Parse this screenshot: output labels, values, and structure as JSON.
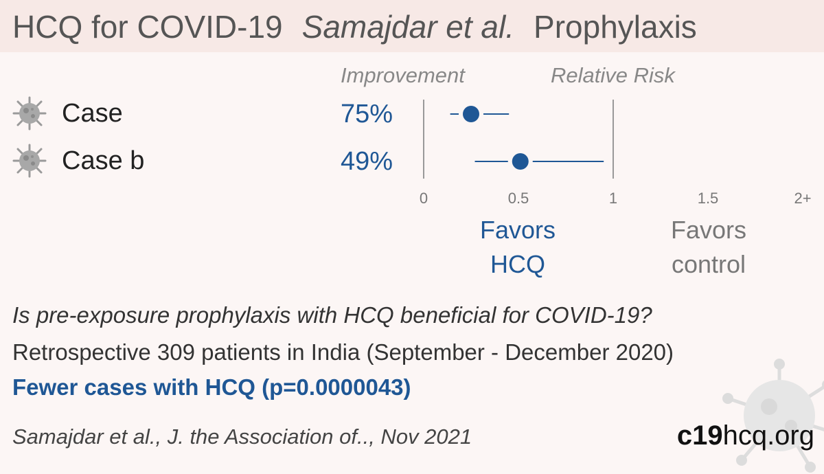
{
  "header": {
    "title": "HCQ for COVID-19",
    "study": "Samajdar et al.",
    "kind": "Prophylaxis"
  },
  "columns": {
    "improvement": "Improvement",
    "relative_risk": "Relative Risk"
  },
  "chart_data": {
    "type": "forest",
    "x_axis": {
      "range": [
        0,
        2
      ],
      "ticks": [
        0,
        0.5,
        1,
        1.5,
        2
      ],
      "tick_labels": [
        "0",
        "0.5",
        "1",
        "1.5",
        "2+"
      ],
      "reference_lines": [
        0,
        1
      ]
    },
    "rows": [
      {
        "label": "Case",
        "improvement": "75%",
        "rr": 0.25,
        "ci_low": 0.14,
        "ci_high": 0.45,
        "icon": "virus-icon"
      },
      {
        "label": "Case b",
        "improvement": "49%",
        "rr": 0.51,
        "ci_low": 0.27,
        "ci_high": 0.95,
        "icon": "virus-icon"
      }
    ],
    "favors_left": [
      "Favors",
      "HCQ"
    ],
    "favors_right": [
      "Favors",
      "control"
    ],
    "colors": {
      "point": "#1f5795",
      "axis": "#999999"
    }
  },
  "summary": {
    "question": "Is pre-exposure prophylaxis with HCQ beneficial for COVID-19?",
    "design": "Retrospective 309 patients in India (September - December 2020)",
    "result": "Fewer cases with HCQ (p=0.0000043)"
  },
  "footer": {
    "citation": "Samajdar et al., J. the Association of.., Nov 2021",
    "site_bold": "c19",
    "site_rest": "hcq.org"
  }
}
